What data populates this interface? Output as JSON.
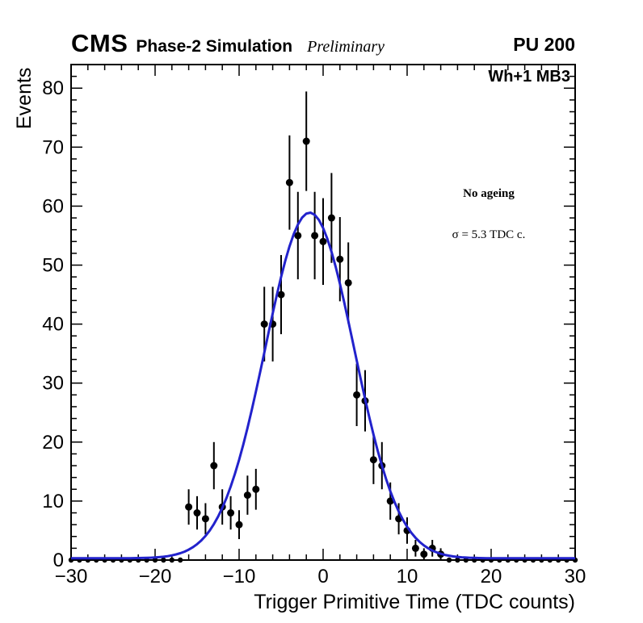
{
  "header": {
    "experiment": "CMS",
    "subtitle": "Phase-2 Simulation",
    "preliminary": "Preliminary",
    "pileup": "PU 200"
  },
  "annotations": {
    "chamber": "Wh+1 MB3",
    "ageing": "No ageing",
    "sigma": "σ = 5.3 TDC c."
  },
  "chart_data": {
    "type": "scatter",
    "title": "",
    "xlabel": "Trigger Primitive Time (TDC counts)",
    "ylabel": "Events",
    "xlim": [
      -30,
      30
    ],
    "ylim": [
      0,
      84
    ],
    "x_major_ticks": [
      -30,
      -20,
      -10,
      0,
      10,
      20,
      30
    ],
    "y_major_ticks": [
      0,
      10,
      20,
      30,
      40,
      50,
      60,
      70,
      80
    ],
    "x_minor_step": 2,
    "y_minor_step": 2,
    "grid": false,
    "marker_color": "#000000",
    "fit_color": "#2222cc",
    "error_mode": "sqrt",
    "points": [
      [
        -30,
        0
      ],
      [
        -29,
        0
      ],
      [
        -28,
        0
      ],
      [
        -27,
        0
      ],
      [
        -26,
        0
      ],
      [
        -25,
        0
      ],
      [
        -24,
        0
      ],
      [
        -23,
        0
      ],
      [
        -22,
        0
      ],
      [
        -21,
        0
      ],
      [
        -20,
        0
      ],
      [
        -19,
        0
      ],
      [
        -18,
        0
      ],
      [
        -17,
        0
      ],
      [
        -16,
        9
      ],
      [
        -15,
        8
      ],
      [
        -14,
        7
      ],
      [
        -13,
        16
      ],
      [
        -12,
        9
      ],
      [
        -11,
        8
      ],
      [
        -10,
        6
      ],
      [
        -9,
        11
      ],
      [
        -8,
        12
      ],
      [
        -7,
        40
      ],
      [
        -6,
        40
      ],
      [
        -5,
        45
      ],
      [
        -4,
        64
      ],
      [
        -3,
        55
      ],
      [
        -2,
        71
      ],
      [
        -1,
        55
      ],
      [
        0,
        54
      ],
      [
        1,
        58
      ],
      [
        2,
        51
      ],
      [
        3,
        47
      ],
      [
        4,
        28
      ],
      [
        5,
        27
      ],
      [
        6,
        17
      ],
      [
        7,
        16
      ],
      [
        8,
        10
      ],
      [
        9,
        7
      ],
      [
        10,
        5
      ],
      [
        11,
        2
      ],
      [
        12,
        1
      ],
      [
        13,
        2
      ],
      [
        14,
        1
      ],
      [
        15,
        0
      ],
      [
        16,
        0
      ],
      [
        17,
        0
      ],
      [
        18,
        0
      ],
      [
        19,
        0
      ],
      [
        20,
        0
      ],
      [
        21,
        0
      ],
      [
        22,
        0
      ],
      [
        23,
        0
      ],
      [
        24,
        0
      ],
      [
        25,
        0
      ],
      [
        26,
        0
      ],
      [
        27,
        0
      ],
      [
        28,
        0
      ],
      [
        29,
        0
      ],
      [
        30,
        0
      ]
    ],
    "fit": {
      "shape": "gaussian",
      "amplitude": 58.6,
      "mean": -1.6,
      "sigma": 5.3,
      "baseline": 0.3
    }
  }
}
